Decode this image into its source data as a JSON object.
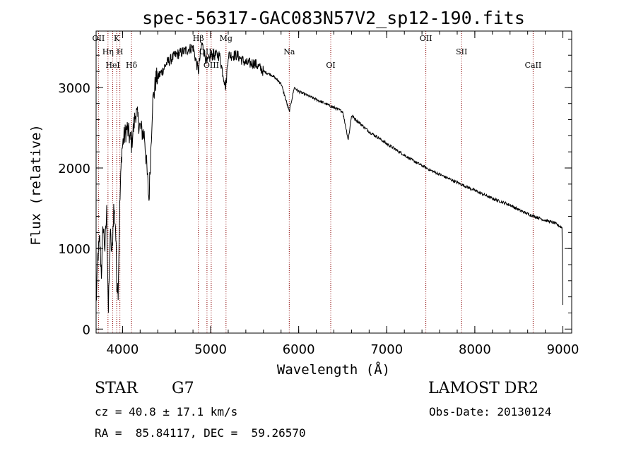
{
  "chart_data": {
    "type": "line",
    "title": "spec-56317-GAC083N57V2_sp12-190.fits",
    "xlabel": "Wavelength (Å)",
    "ylabel": "Flux (relative)",
    "xlim": [
      3700,
      9100
    ],
    "ylim": [
      -50,
      3700
    ],
    "xticks": [
      4000,
      5000,
      6000,
      7000,
      8000,
      9000
    ],
    "yticks": [
      0,
      1000,
      2000,
      3000
    ],
    "x_tick_labels": [
      "4000",
      "5000",
      "6000",
      "7000",
      "8000",
      "9000"
    ],
    "y_tick_labels": [
      "0",
      "1000",
      "2000",
      "3000"
    ],
    "grid": false,
    "line_color": "#000000",
    "marker_color": "#8b0000",
    "series": [
      {
        "x": [
          3700,
          3720,
          3740,
          3760,
          3780,
          3800,
          3820,
          3840,
          3860,
          3880,
          3900,
          3920,
          3935,
          3950,
          3968,
          3990,
          4010,
          4050,
          4101,
          4150,
          4200,
          4250,
          4300,
          4340,
          4380,
          4450,
          4500,
          4600,
          4700,
          4800,
          4861,
          4900,
          4960,
          5007,
          5100,
          5172,
          5200,
          5300,
          5400,
          5500,
          5600,
          5700,
          5800,
          5893,
          5950,
          6000,
          6100,
          6200,
          6300,
          6400,
          6500,
          6563,
          6600,
          6700,
          6800,
          6900,
          7000,
          7100,
          7200,
          7300,
          7400,
          7500,
          7600,
          7700,
          7800,
          7900,
          8000,
          8100,
          8200,
          8300,
          8400,
          8500,
          8600,
          8700,
          8800,
          8900,
          8990,
          9000
        ],
        "y": [
          300,
          900,
          1100,
          700,
          1300,
          1000,
          1450,
          200,
          1200,
          900,
          1500,
          1300,
          600,
          500,
          1500,
          2200,
          2350,
          2500,
          2300,
          2700,
          2500,
          2400,
          1600,
          2800,
          3100,
          3200,
          3300,
          3400,
          3450,
          3500,
          3200,
          3550,
          3300,
          3400,
          3400,
          3000,
          3400,
          3400,
          3300,
          3300,
          3200,
          3150,
          3050,
          2700,
          3000,
          2950,
          2900,
          2850,
          2800,
          2750,
          2700,
          2350,
          2650,
          2550,
          2450,
          2380,
          2300,
          2230,
          2160,
          2090,
          2030,
          1970,
          1920,
          1870,
          1820,
          1770,
          1720,
          1670,
          1620,
          1580,
          1540,
          1480,
          1430,
          1390,
          1350,
          1320,
          1260,
          300
        ]
      }
    ],
    "lines": [
      {
        "x": 3727,
        "label": "OII"
      },
      {
        "x": 3835,
        "label": "Hη"
      },
      {
        "x": 3889,
        "label": "HeI"
      },
      {
        "x": 3934,
        "label": "K"
      },
      {
        "x": 3970,
        "label": "H"
      },
      {
        "x": 4102,
        "label": "Hδ"
      },
      {
        "x": 4861,
        "label": "Hβ"
      },
      {
        "x": 4959,
        "label": "OIII"
      },
      {
        "x": 5007,
        "label": "OIII"
      },
      {
        "x": 5175,
        "label": "Mg"
      },
      {
        "x": 5893,
        "label": "Na"
      },
      {
        "x": 6364,
        "label": "OI"
      },
      {
        "x": 7444,
        "label": "OII"
      },
      {
        "x": 7850,
        "label": "SII"
      },
      {
        "x": 8662,
        "label": "CaII"
      }
    ]
  },
  "info": {
    "object_class": "STAR",
    "subclass": "G7",
    "survey": "LAMOST DR2",
    "redshift_line": "cz = 40.8 ± 17.1 km/s",
    "obs_date_line": "Obs-Date: 20130124",
    "coords_line": "RA =  85.84117, DEC =  59.26570"
  }
}
